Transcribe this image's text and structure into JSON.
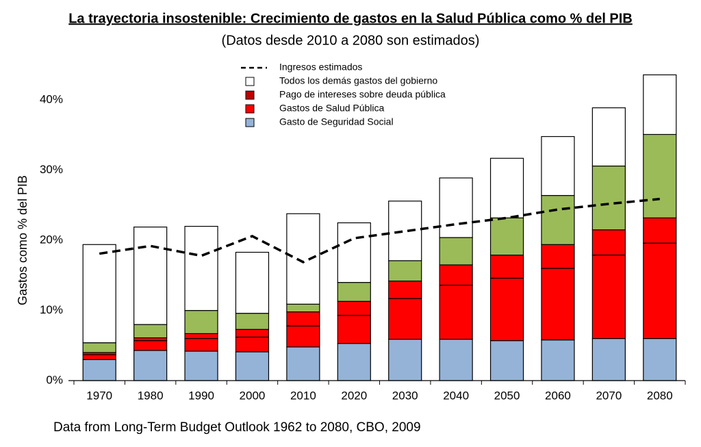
{
  "chart_data": {
    "type": "stacked-bar-line",
    "title": "La trayectoria insostenible: Crecimiento de gastos en la Salud Pública como % del PIB",
    "subtitle": "(Datos desde 2010 a 2080 son estimados)",
    "y_label": "Gastos como % del PIB",
    "source": "Data from Long-Term Budget Outlook 1962 to 2080, CBO, 2009",
    "categories": [
      "1970",
      "1980",
      "1990",
      "2000",
      "2010",
      "2020",
      "2030",
      "2040",
      "2050",
      "2060",
      "2070",
      "2080"
    ],
    "series": [
      {
        "name": "Gasto de Seguridad Social",
        "color": "#95b3d7",
        "values": [
          3.0,
          4.3,
          4.2,
          4.1,
          4.8,
          5.3,
          5.9,
          5.9,
          5.7,
          5.8,
          6.0,
          6.0
        ]
      },
      {
        "name": "Gastos de Salud Pública",
        "color": "#ff0000",
        "values": [
          0.7,
          1.4,
          1.8,
          2.1,
          3.0,
          4.0,
          5.8,
          7.7,
          8.9,
          10.2,
          11.9,
          13.6
        ]
      },
      {
        "name": "Pago de intereses sobre deuda pública",
        "color": "#ff0000",
        "legend_color": "#c00000",
        "values": [
          0.3,
          0.4,
          0.7,
          1.1,
          2.0,
          2.0,
          2.5,
          2.9,
          3.3,
          3.4,
          3.6,
          3.6
        ]
      },
      {
        "name": null,
        "color": "#9bbb59",
        "values": [
          1.4,
          1.9,
          3.3,
          2.3,
          1.1,
          2.7,
          2.9,
          3.9,
          5.3,
          7.0,
          9.1,
          11.9
        ]
      },
      {
        "name": "Todos los demás gastos del gobierno",
        "color": "#ffffff",
        "values": [
          14.0,
          13.9,
          12.0,
          8.7,
          12.9,
          8.5,
          8.5,
          8.5,
          8.5,
          8.4,
          8.3,
          8.5
        ]
      }
    ],
    "line": {
      "name": "Ingresos estimados",
      "color": "#000000",
      "values": [
        18.1,
        19.2,
        17.8,
        20.6,
        16.9,
        20.3,
        21.3,
        22.3,
        23.2,
        24.4,
        25.2,
        25.9
      ]
    },
    "ylim": [
      0,
      45
    ],
    "yticks": [
      {
        "value": 0,
        "label": "0%"
      },
      {
        "value": 10,
        "label": "10%"
      },
      {
        "value": 20,
        "label": "20%"
      },
      {
        "value": 30,
        "label": "30%"
      },
      {
        "value": 40,
        "label": "40%"
      }
    ],
    "grid": false
  }
}
